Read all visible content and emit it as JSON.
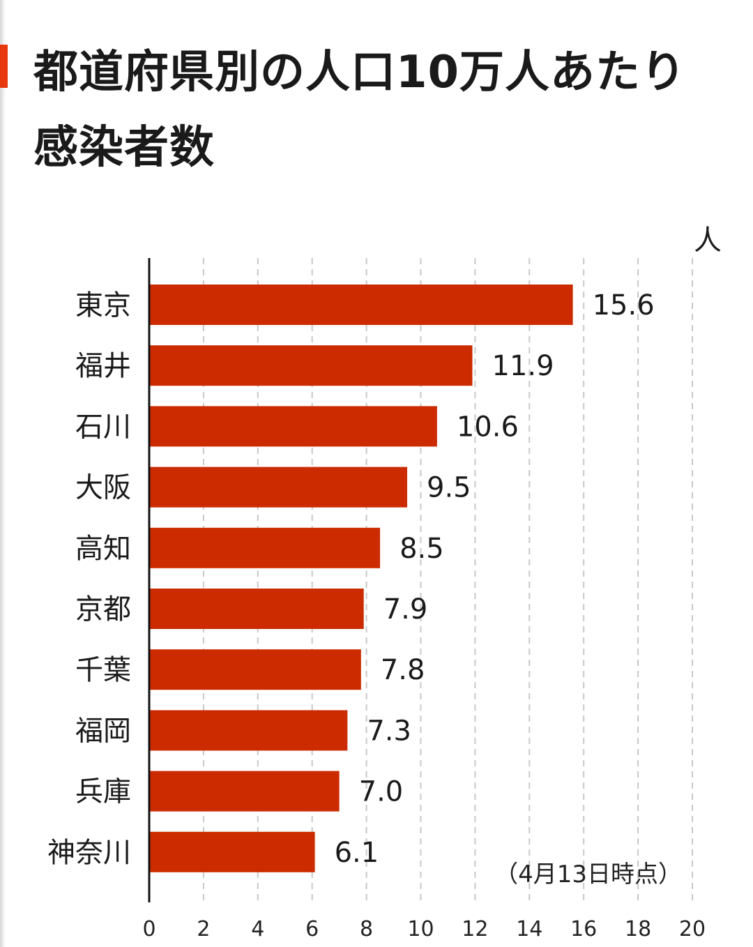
{
  "header": {
    "title": "都道府県別の人口10万人あたり感染者数"
  },
  "unit_label": "人",
  "note": "（4月13日時点）",
  "colors": {
    "bar": "#cc2b00",
    "accent": "#e8380d",
    "grid": "#c8c8c8",
    "axis": "#111111"
  },
  "chart_data": {
    "type": "bar",
    "orientation": "horizontal",
    "categories": [
      "東京",
      "福井",
      "石川",
      "大阪",
      "高知",
      "京都",
      "千葉",
      "福岡",
      "兵庫",
      "神奈川"
    ],
    "values": [
      15.6,
      11.9,
      10.6,
      9.5,
      8.5,
      7.9,
      7.8,
      7.3,
      7.0,
      6.1
    ],
    "value_labels": [
      "15.6",
      "11.9",
      "10.6",
      "9.5",
      "8.5",
      "7.9",
      "7.8",
      "7.3",
      "7.0",
      "6.1"
    ],
    "xlim": [
      0,
      20
    ],
    "xticks": [
      0,
      2,
      4,
      6,
      8,
      10,
      12,
      14,
      16,
      18,
      20
    ],
    "grid": true,
    "title": "都道府県別の人口10万人あたり感染者数",
    "xlabel": "人",
    "ylabel": ""
  }
}
